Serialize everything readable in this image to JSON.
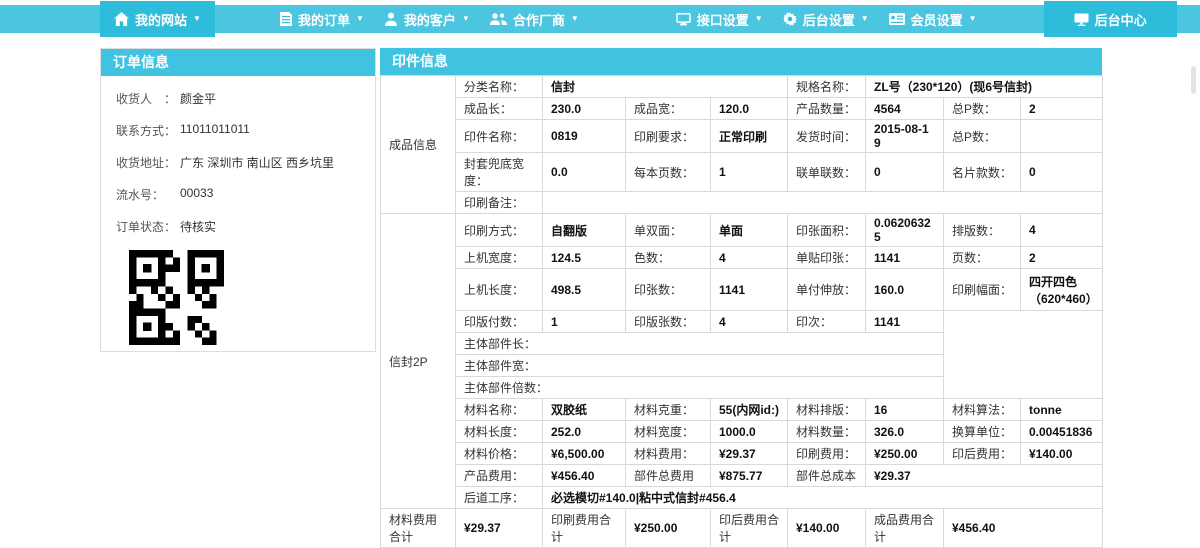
{
  "colors": {
    "navbar": "#4cc5e0",
    "nav_active": "#2ebcdb",
    "panel_header": "#3fc3e0",
    "border": "#d9d9d9"
  },
  "nav": {
    "items": [
      {
        "name": "my-website",
        "label": "我的网站",
        "icon": "home",
        "caret": true,
        "active": true
      },
      {
        "name": "my-orders",
        "label": "我的订单",
        "icon": "orders",
        "caret": true,
        "active": false
      },
      {
        "name": "my-customers",
        "label": "我的客户",
        "icon": "customers",
        "caret": true,
        "active": false
      },
      {
        "name": "partners",
        "label": "合作厂商",
        "icon": "partners",
        "caret": true,
        "active": false
      },
      {
        "name": "interface-settings",
        "label": "接口设置",
        "icon": "monitor",
        "caret": true,
        "active": false
      },
      {
        "name": "backend-settings",
        "label": "后台设置",
        "icon": "gear",
        "caret": true,
        "active": false
      },
      {
        "name": "member-settings",
        "label": "会员设置",
        "icon": "card",
        "caret": true,
        "active": false
      },
      {
        "name": "backend-center",
        "label": "后台中心",
        "icon": "display",
        "caret": false,
        "active": true
      }
    ]
  },
  "order_panel": {
    "title": "订单信息",
    "fields": [
      {
        "name": "receiver",
        "label": "收货人　：",
        "value": "颜金平"
      },
      {
        "name": "contact",
        "label": "联系方式：",
        "value": "11011011011"
      },
      {
        "name": "address",
        "label": "收货地址：",
        "value": "广东 深圳市 南山区 西乡坑里"
      },
      {
        "name": "serial-number",
        "label": "流水号：",
        "value": "00033"
      },
      {
        "name": "order-status",
        "label": "订单状态：",
        "value": "待核实"
      }
    ]
  },
  "print_panel": {
    "title": "印件信息",
    "table": {
      "rows": [
        {
          "cells": [
            [
              "成品信息",
              "sec",
              1,
              5
            ],
            [
              "分类名称：",
              "l",
              1,
              1
            ],
            [
              "信封",
              "v",
              3,
              1
            ],
            [
              "规格名称：",
              "l",
              1,
              1
            ],
            [
              "ZL号（230*120）(现6号信封)",
              "v",
              3,
              1
            ]
          ]
        },
        {
          "cells": [
            [
              "成品长：",
              "l",
              1,
              1
            ],
            [
              "230.0",
              "v",
              1,
              1
            ],
            [
              "成品宽：",
              "l",
              1,
              1
            ],
            [
              "120.0",
              "v",
              1,
              1
            ],
            [
              "产品数量：",
              "l",
              1,
              1
            ],
            [
              "4564",
              "v",
              1,
              1
            ],
            [
              "总P数：",
              "l",
              1,
              1
            ],
            [
              "2",
              "v",
              1,
              1
            ]
          ]
        },
        {
          "cells": [
            [
              "印件名称：",
              "l",
              1,
              1
            ],
            [
              "0819",
              "v",
              1,
              1
            ],
            [
              "印刷要求：",
              "l",
              1,
              1
            ],
            [
              "正常印刷",
              "v",
              1,
              1
            ],
            [
              "发货时间：",
              "l",
              1,
              1
            ],
            [
              "2015-08-19",
              "v",
              1,
              1
            ],
            [
              "总P数：",
              "l",
              1,
              1
            ],
            [
              "",
              "v",
              1,
              1
            ]
          ]
        },
        {
          "cells": [
            [
              "封套兜底宽度：",
              "l",
              1,
              1
            ],
            [
              "0.0",
              "v",
              1,
              1
            ],
            [
              "每本页数：",
              "l",
              1,
              1
            ],
            [
              "1",
              "v",
              1,
              1
            ],
            [
              "联单联数：",
              "l",
              1,
              1
            ],
            [
              "0",
              "v",
              1,
              1
            ],
            [
              "名片款数：",
              "l",
              1,
              1
            ],
            [
              "0",
              "v",
              1,
              1
            ]
          ]
        },
        {
          "cells": [
            [
              "印刷备注：",
              "l",
              1,
              1
            ],
            [
              "",
              "v",
              7,
              1
            ]
          ]
        },
        {
          "cells": [
            [
              "信封2P",
              "sec",
              1,
              12
            ],
            [
              "印刷方式：",
              "l",
              1,
              1
            ],
            [
              "自翻版",
              "v",
              1,
              1
            ],
            [
              "单双面：",
              "l",
              1,
              1
            ],
            [
              "单面",
              "v",
              1,
              1
            ],
            [
              "印张面积：",
              "l",
              1,
              1
            ],
            [
              "0.06206325",
              "v",
              1,
              1
            ],
            [
              "排版数：",
              "l",
              1,
              1
            ],
            [
              "4",
              "v",
              1,
              1
            ]
          ]
        },
        {
          "cells": [
            [
              "上机宽度：",
              "l",
              1,
              1
            ],
            [
              "124.5",
              "v",
              1,
              1
            ],
            [
              "色数：",
              "l",
              1,
              1
            ],
            [
              "4",
              "v",
              1,
              1
            ],
            [
              "单贴印张：",
              "l",
              1,
              1
            ],
            [
              "1141",
              "v",
              1,
              1
            ],
            [
              "页数：",
              "l",
              1,
              1
            ],
            [
              "2",
              "v",
              1,
              1
            ]
          ]
        },
        {
          "h": 42,
          "cells": [
            [
              "上机长度：",
              "l",
              1,
              1
            ],
            [
              "498.5",
              "v",
              1,
              1
            ],
            [
              "印张数：",
              "l",
              1,
              1
            ],
            [
              "1141",
              "v",
              1,
              1
            ],
            [
              "单付伸放：",
              "l",
              1,
              1
            ],
            [
              "160.0",
              "v",
              1,
              1
            ],
            [
              "印刷幅面：",
              "l",
              1,
              1
            ],
            [
              "四开四色（620*460）",
              "v",
              1,
              1
            ]
          ]
        },
        {
          "cells": [
            [
              "印版付数：",
              "l",
              1,
              1
            ],
            [
              "1",
              "v",
              1,
              1
            ],
            [
              "印版张数：",
              "l",
              1,
              1
            ],
            [
              "4",
              "v",
              1,
              1
            ],
            [
              "印次：",
              "l",
              1,
              1
            ],
            [
              "1141",
              "v",
              1,
              1
            ],
            [
              "",
              "e",
              2,
              4
            ]
          ]
        },
        {
          "cells": [
            [
              "主体部件长：",
              "l",
              6,
              1
            ]
          ]
        },
        {
          "cells": [
            [
              "主体部件宽：",
              "l",
              6,
              1
            ]
          ]
        },
        {
          "cells": [
            [
              "主体部件倍数：",
              "l",
              6,
              1
            ]
          ]
        },
        {
          "cells": [
            [
              "材料名称：",
              "l",
              1,
              1
            ],
            [
              "双胶纸",
              "v",
              1,
              1
            ],
            [
              "材料克重：",
              "l",
              1,
              1
            ],
            [
              "55(内网id:)",
              "v",
              1,
              1
            ],
            [
              "材料排版：",
              "l",
              1,
              1
            ],
            [
              "16",
              "v",
              1,
              1
            ],
            [
              "材料算法：",
              "l",
              1,
              1
            ],
            [
              "tonne",
              "v",
              1,
              1
            ]
          ]
        },
        {
          "cells": [
            [
              "材料长度：",
              "l",
              1,
              1
            ],
            [
              "252.0",
              "v",
              1,
              1
            ],
            [
              "材料宽度：",
              "l",
              1,
              1
            ],
            [
              "1000.0",
              "v",
              1,
              1
            ],
            [
              "材料数量：",
              "l",
              1,
              1
            ],
            [
              "326.0",
              "v",
              1,
              1
            ],
            [
              "换算单位：",
              "l",
              1,
              1
            ],
            [
              "0.00451836",
              "v",
              1,
              1
            ]
          ]
        },
        {
          "cells": [
            [
              "材料价格：",
              "l",
              1,
              1
            ],
            [
              "¥6,500.00",
              "v",
              1,
              1
            ],
            [
              "材料费用：",
              "l",
              1,
              1
            ],
            [
              "¥29.37",
              "v",
              1,
              1
            ],
            [
              "印刷费用：",
              "l",
              1,
              1
            ],
            [
              "¥250.00",
              "v",
              1,
              1
            ],
            [
              "印后费用：",
              "l",
              1,
              1
            ],
            [
              "¥140.00",
              "v",
              1,
              1
            ]
          ]
        },
        {
          "cells": [
            [
              "产品费用：",
              "l",
              1,
              1
            ],
            [
              "¥456.40",
              "v",
              1,
              1
            ],
            [
              "部件总费用",
              "l",
              1,
              1
            ],
            [
              "¥875.77",
              "v",
              1,
              1
            ],
            [
              "部件总成本",
              "l",
              1,
              1
            ],
            [
              "¥29.37",
              "v",
              3,
              1
            ]
          ]
        },
        {
          "cells": [
            [
              "后道工序：",
              "l",
              1,
              1
            ],
            [
              "必选模切#140.0|粘中式信封#456.4",
              "v",
              7,
              1
            ]
          ]
        },
        {
          "cells": [
            [
              "材料费用合计",
              "l",
              1,
              1
            ],
            [
              "¥29.37",
              "v",
              1,
              1
            ],
            [
              "印刷费用合计",
              "l",
              1,
              1
            ],
            [
              "¥250.00",
              "v",
              1,
              1
            ],
            [
              "印后费用合计",
              "l",
              1,
              1
            ],
            [
              "¥140.00",
              "v",
              1,
              1
            ],
            [
              "成品费用合计",
              "l",
              1,
              1
            ],
            [
              "¥456.40",
              "v",
              2,
              1
            ]
          ]
        }
      ]
    }
  }
}
